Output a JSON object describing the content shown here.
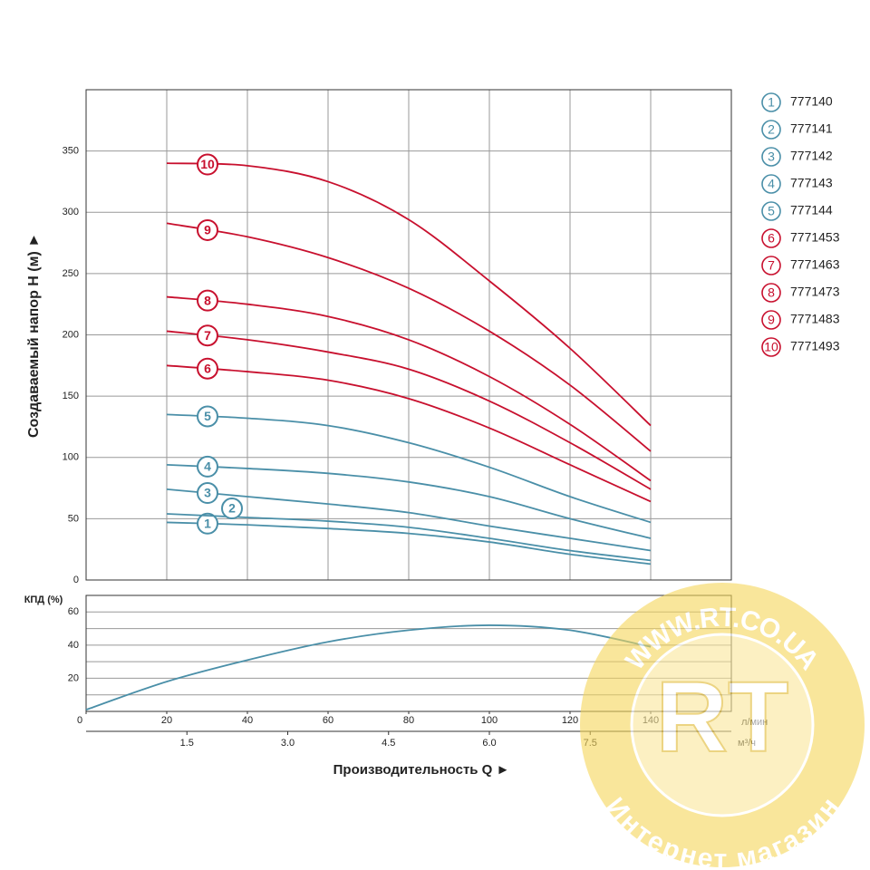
{
  "chart_data": [
    {
      "type": "line",
      "y_label": "Создаваемый напор H (м) ►",
      "xlim": [
        0,
        160
      ],
      "xticks": [
        20,
        40,
        60,
        80,
        100,
        120,
        140
      ],
      "ylim": [
        0,
        400
      ],
      "yticks": [
        0,
        50,
        100,
        150,
        200,
        250,
        300,
        350
      ],
      "grid": true,
      "x": [
        20,
        40,
        60,
        80,
        100,
        120,
        140
      ],
      "series": [
        {
          "name": "777140",
          "label": "1",
          "color": "#4a8fa8",
          "values": [
            47,
            45,
            42,
            38,
            31,
            21,
            13
          ]
        },
        {
          "name": "777141",
          "label": "2",
          "color": "#4a8fa8",
          "values": [
            54,
            51,
            48,
            43,
            34,
            24,
            16
          ]
        },
        {
          "name": "777142",
          "label": "3",
          "color": "#4a8fa8",
          "values": [
            74,
            68,
            62,
            55,
            44,
            34,
            24
          ]
        },
        {
          "name": "777143",
          "label": "4",
          "color": "#4a8fa8",
          "values": [
            94,
            91,
            87,
            80,
            68,
            50,
            34
          ]
        },
        {
          "name": "777144",
          "label": "5",
          "color": "#4a8fa8",
          "values": [
            135,
            132,
            126,
            112,
            92,
            68,
            47
          ]
        },
        {
          "name": "7771453",
          "label": "6",
          "color": "#c8102e",
          "values": [
            175,
            170,
            163,
            148,
            124,
            94,
            64
          ]
        },
        {
          "name": "7771463",
          "label": "7",
          "color": "#c8102e",
          "values": [
            203,
            196,
            186,
            172,
            146,
            112,
            74
          ]
        },
        {
          "name": "7771473",
          "label": "8",
          "color": "#c8102e",
          "values": [
            231,
            225,
            215,
            196,
            166,
            127,
            81
          ]
        },
        {
          "name": "7771483",
          "label": "9",
          "color": "#c8102e",
          "values": [
            291,
            280,
            263,
            238,
            203,
            159,
            105
          ]
        },
        {
          "name": "7771493",
          "label": "10",
          "color": "#c8102e",
          "values": [
            340,
            338,
            325,
            294,
            244,
            189,
            126
          ]
        }
      ]
    },
    {
      "type": "line",
      "y_label": "КПД (%)",
      "x_label": "Производительность Q ►",
      "xlim": [
        0,
        160
      ],
      "xticks": [
        0,
        20,
        40,
        60,
        80,
        100,
        120,
        140
      ],
      "x_unit": "л/мин",
      "x2lim": [
        0,
        9.6
      ],
      "x2ticks": [
        1.5,
        {
          "value": 3,
          "label": "3.0"
        },
        4.5,
        {
          "value": 6,
          "label": "6.0"
        },
        7.5
      ],
      "x2_unit": "м³/ч",
      "ylim": [
        0,
        70
      ],
      "yticks": [
        20,
        40,
        60
      ],
      "minor_yticks": [
        10,
        30,
        50
      ],
      "grid": true,
      "color": "#4a8fa8",
      "x": [
        0,
        20,
        40,
        60,
        80,
        100,
        120,
        140
      ],
      "values": [
        1,
        18,
        31,
        42,
        49,
        52,
        49,
        39
      ]
    }
  ],
  "watermark": {
    "url": "WWW.RT.CO.UA",
    "logo": "RT",
    "caption": "Интернет магазин"
  }
}
